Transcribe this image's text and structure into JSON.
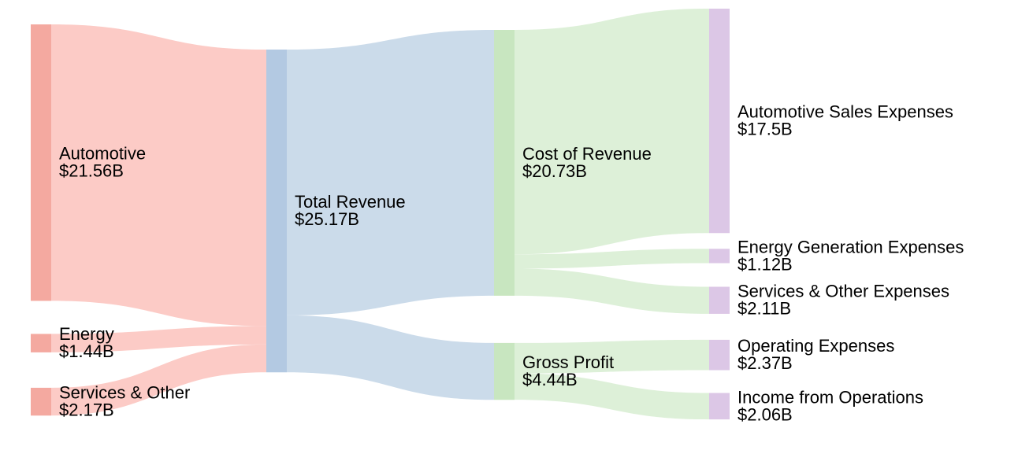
{
  "chart_data": {
    "type": "sankey",
    "title": "",
    "units": "USD billions",
    "nodes": [
      {
        "id": "automotive",
        "label": "Automotive",
        "value_label": "$21.56B",
        "value": 21.56,
        "column": 0
      },
      {
        "id": "energy",
        "label": "Energy",
        "value_label": "$1.44B",
        "value": 1.44,
        "column": 0
      },
      {
        "id": "services",
        "label": "Services & Other",
        "value_label": "$2.17B",
        "value": 2.17,
        "column": 0
      },
      {
        "id": "total",
        "label": "Total Revenue",
        "value_label": "$25.17B",
        "value": 25.17,
        "column": 1
      },
      {
        "id": "cost",
        "label": "Cost of Revenue",
        "value_label": "$20.73B",
        "value": 20.73,
        "column": 2
      },
      {
        "id": "gross",
        "label": "Gross Profit",
        "value_label": "$4.44B",
        "value": 4.44,
        "column": 2
      },
      {
        "id": "auto_exp",
        "label": "Automotive Sales Expenses",
        "value_label": "$17.5B",
        "value": 17.5,
        "column": 3
      },
      {
        "id": "energy_exp",
        "label": "Energy Generation Expenses",
        "value_label": "$1.12B",
        "value": 1.12,
        "column": 3
      },
      {
        "id": "services_exp",
        "label": "Services & Other Expenses",
        "value_label": "$2.11B",
        "value": 2.11,
        "column": 3
      },
      {
        "id": "opex",
        "label": "Operating Expenses",
        "value_label": "$2.37B",
        "value": 2.37,
        "column": 3
      },
      {
        "id": "income",
        "label": "Income from Operations",
        "value_label": "$2.06B",
        "value": 2.06,
        "column": 3
      }
    ],
    "links": [
      {
        "source": "automotive",
        "target": "total",
        "value": 21.56
      },
      {
        "source": "energy",
        "target": "total",
        "value": 1.44
      },
      {
        "source": "services",
        "target": "total",
        "value": 2.17
      },
      {
        "source": "total",
        "target": "cost",
        "value": 20.73
      },
      {
        "source": "total",
        "target": "gross",
        "value": 4.44
      },
      {
        "source": "cost",
        "target": "auto_exp",
        "value": 17.5
      },
      {
        "source": "cost",
        "target": "energy_exp",
        "value": 1.12
      },
      {
        "source": "cost",
        "target": "services_exp",
        "value": 2.11
      },
      {
        "source": "gross",
        "target": "opex",
        "value": 2.37
      },
      {
        "source": "gross",
        "target": "income",
        "value": 2.06
      }
    ],
    "colors": {
      "automotive": "#f4a9a0",
      "energy": "#f4a9a0",
      "services": "#f4a9a0",
      "total": "#b3c9e2",
      "cost": "#c8e6c0",
      "gross": "#c8e6c0",
      "auto_exp": "#dcc7e6",
      "energy_exp": "#dcc7e6",
      "services_exp": "#dcc7e6",
      "opex": "#dcc7e6",
      "income": "#dcc7e6"
    },
    "link_colors": {
      "automotive": "#fccbc6",
      "energy": "#fccbc6",
      "services": "#fccbc6",
      "total": "#cbdbea",
      "cost": "#ddf0d8",
      "gross": "#ddf0d8"
    }
  }
}
